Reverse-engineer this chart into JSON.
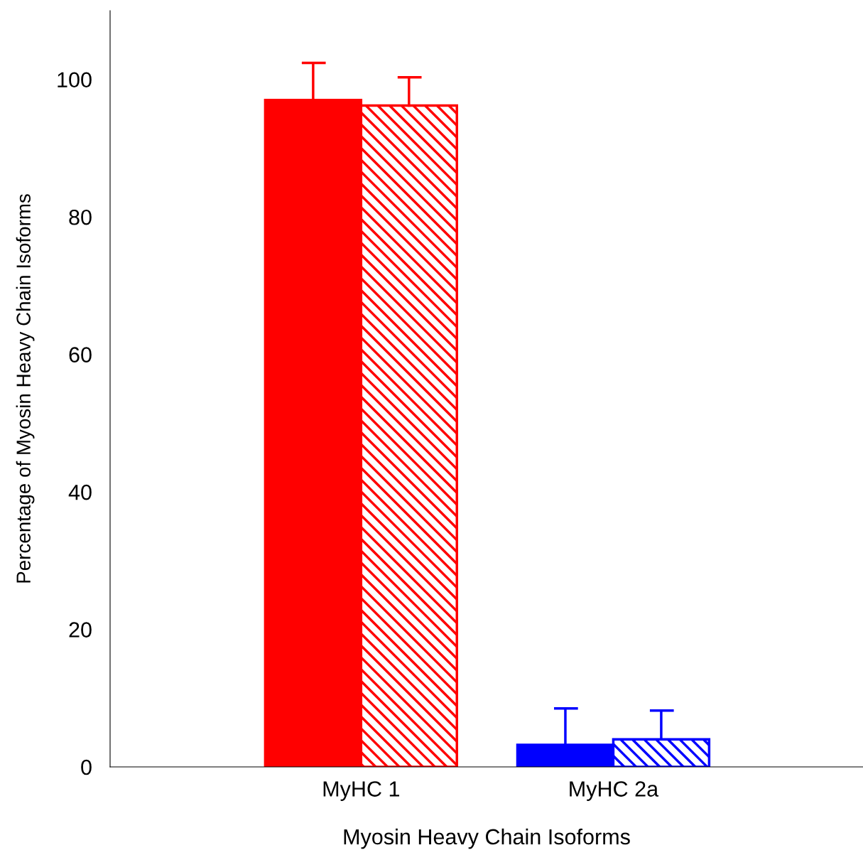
{
  "chart_data": {
    "type": "bar",
    "xlabel": "Myosin Heavy Chain Isoforms",
    "ylabel": "Percentage of Myosin Heavy Chain Isoforms",
    "categories": [
      "MyHC 1",
      "MyHC 2a"
    ],
    "series": [
      {
        "colors": [
          "#ff0000",
          "#0000ff"
        ],
        "values": [
          97.0,
          3.2
        ],
        "errors": [
          [
            97.0,
            102.4
          ],
          [
            3.2,
            8.5
          ]
        ]
      },
      {
        "colors": [
          "#ff0000",
          "#0000ff"
        ],
        "values": [
          96.2,
          4.0
        ],
        "errors": [
          [
            96.2,
            100.3
          ],
          [
            4.0,
            8.2
          ]
        ]
      }
    ],
    "ylim": [
      0,
      110
    ],
    "yticks": [
      0,
      20,
      40,
      60,
      80,
      100
    ],
    "grid": false,
    "legend": false
  }
}
